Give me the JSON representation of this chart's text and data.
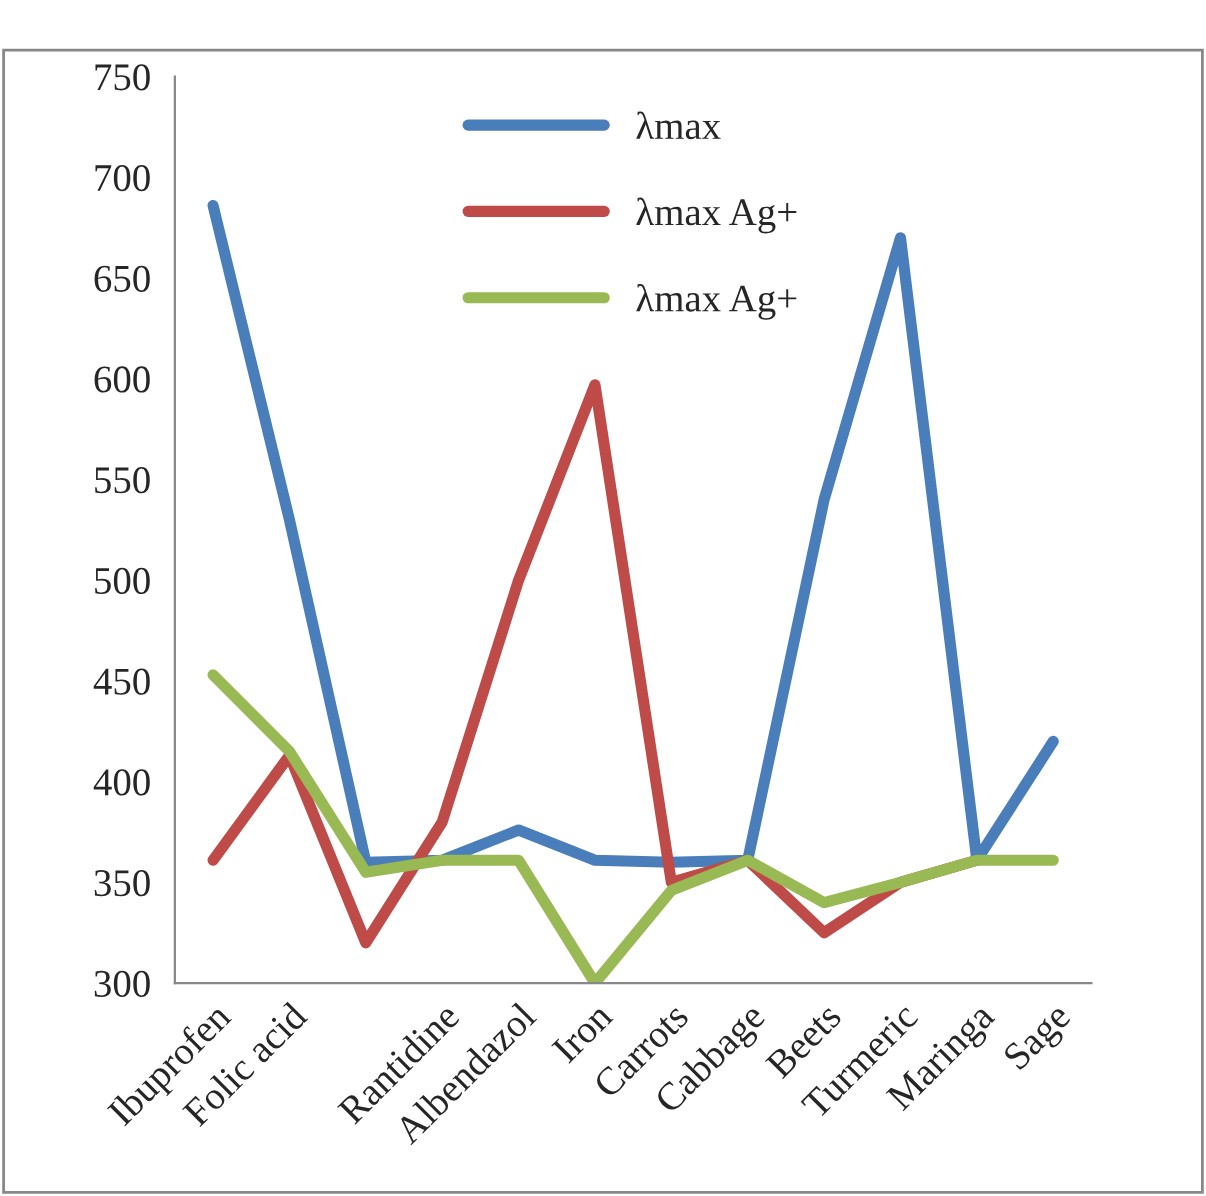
{
  "chart_data": {
    "type": "line",
    "categories": [
      "Ibuprofen",
      "Folic acid",
      null,
      "Rantidine",
      "Albendazol",
      "Iron",
      "Carrots",
      "Cabbage",
      "Beets",
      "Turmeric",
      "Maringa",
      "Sage"
    ],
    "series": [
      {
        "name": "λmax",
        "color": "#4a7ebb",
        "values": [
          686,
          530,
          360,
          361,
          376,
          361,
          360,
          361,
          540,
          670,
          361,
          420
        ]
      },
      {
        "name": "λmax Ag+",
        "color": "#be4b48",
        "values": [
          361,
          413,
          320,
          380,
          500,
          597,
          350,
          361,
          325,
          350,
          361,
          null
        ]
      },
      {
        "name": "λmax Ag+",
        "color": "#98b954",
        "values": [
          453,
          415,
          355,
          361,
          361,
          300,
          346,
          361,
          340,
          350,
          361,
          361
        ]
      }
    ],
    "ylim": [
      300,
      750
    ],
    "yticks": [
      300,
      350,
      400,
      450,
      500,
      550,
      600,
      650,
      700,
      750
    ],
    "grid": false,
    "legend": "top",
    "marker": "none",
    "line_style": "solid"
  }
}
